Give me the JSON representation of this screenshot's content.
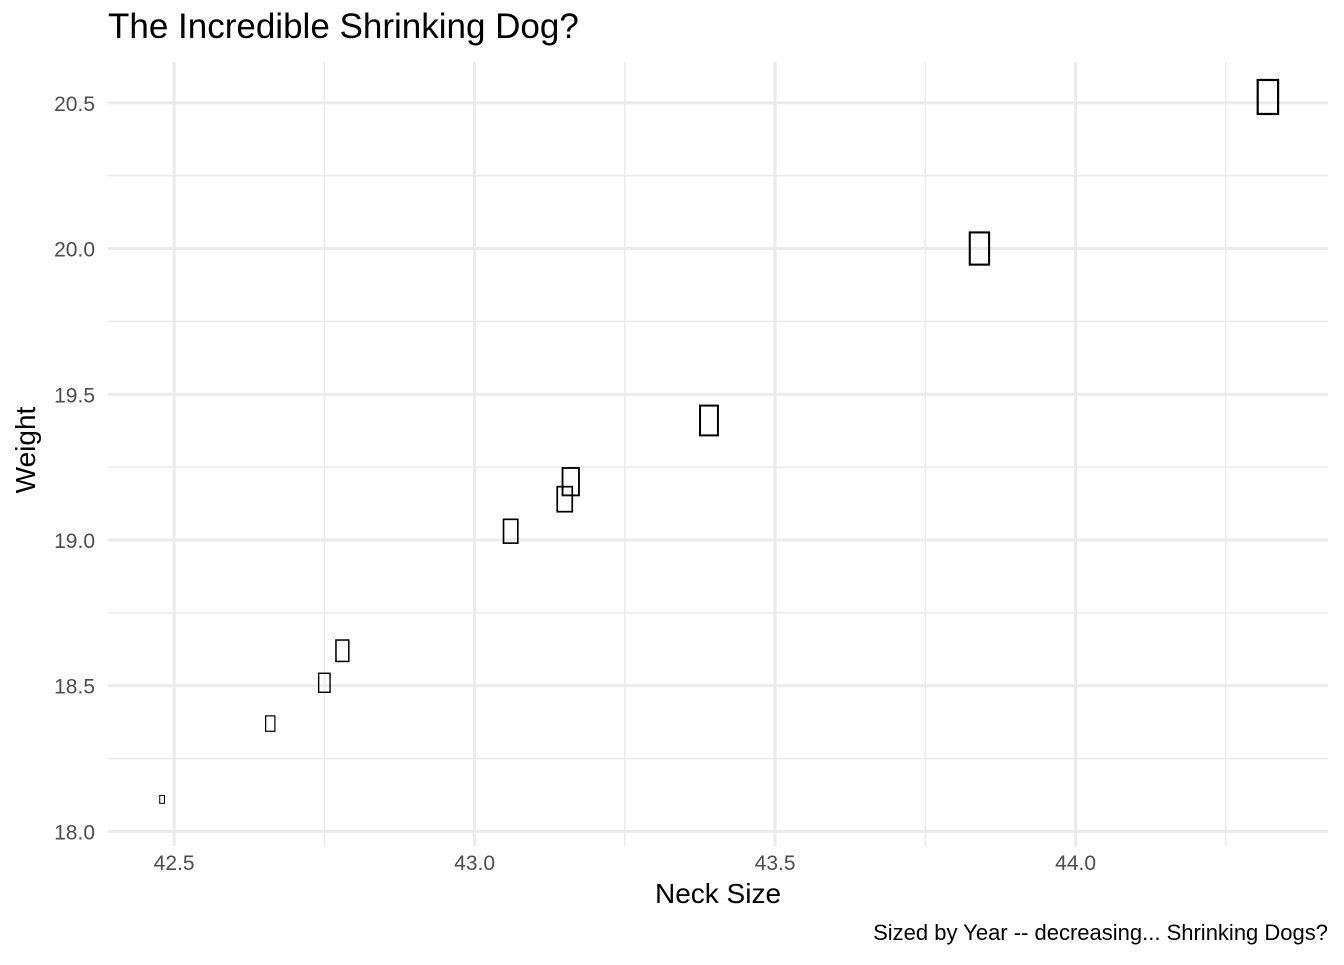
{
  "chart_data": {
    "type": "scatter",
    "title": "The Incredible Shrinking Dog?",
    "xlabel": "Neck Size",
    "ylabel": "Weight",
    "caption": "Sized by Year -- decreasing...  Shrinking Dogs?",
    "xlim": [
      42.39,
      44.42
    ],
    "ylim": [
      17.95,
      20.64
    ],
    "x_major_ticks": [
      42.5,
      43.0,
      43.5,
      44.0
    ],
    "x_tick_labels": [
      "42.5",
      "43.0",
      "43.5",
      "44.0"
    ],
    "x_minor_ticks": [
      42.75,
      43.25,
      43.75,
      44.25
    ],
    "y_major_ticks": [
      18.0,
      18.5,
      19.0,
      19.5,
      20.0,
      20.5
    ],
    "y_tick_labels": [
      "18.0",
      "18.5",
      "19.0",
      "19.5",
      "20.0",
      "20.5"
    ],
    "y_minor_ticks": [
      18.25,
      18.75,
      19.25,
      19.75,
      20.25
    ],
    "grid": true,
    "legend": "none",
    "marker": "box-glyph",
    "marker_size_scale": "relative",
    "points": [
      {
        "x": 42.48,
        "y": 18.11,
        "size": 0.13
      },
      {
        "x": 42.66,
        "y": 18.37,
        "size": 0.38
      },
      {
        "x": 42.75,
        "y": 18.51,
        "size": 0.5
      },
      {
        "x": 42.78,
        "y": 18.62,
        "size": 0.58
      },
      {
        "x": 43.06,
        "y": 19.03,
        "size": 0.66
      },
      {
        "x": 43.15,
        "y": 19.14,
        "size": 0.7
      },
      {
        "x": 43.16,
        "y": 19.2,
        "size": 0.78
      },
      {
        "x": 43.39,
        "y": 19.41,
        "size": 0.86
      },
      {
        "x": 43.84,
        "y": 20.0,
        "size": 0.94
      },
      {
        "x": 44.32,
        "y": 20.52,
        "size": 1.0
      }
    ]
  }
}
